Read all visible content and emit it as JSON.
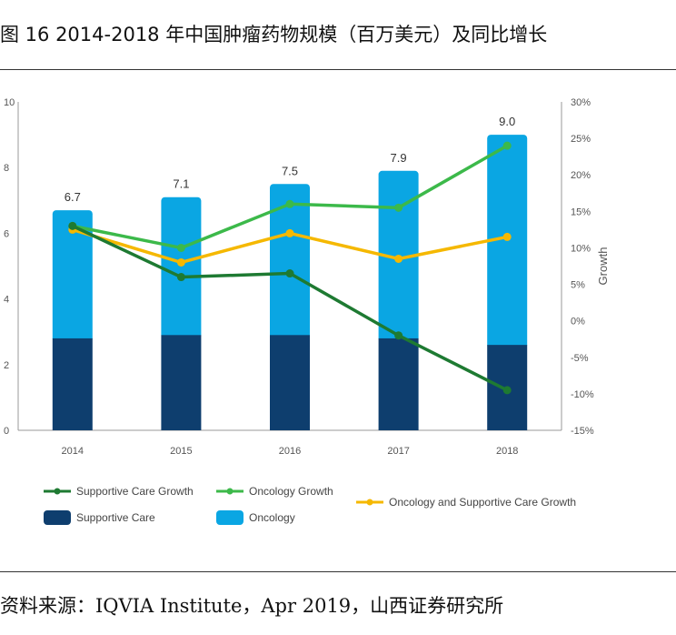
{
  "caption": "图 16 2014-2018 年中国肿瘤药物规模（百万美元）及同比增长",
  "source": "资料来源：IQVIA Institute，Apr 2019，山西证券研究所",
  "colors": {
    "supportive_care": "#0e3e6e",
    "oncology": "#0aa6e3",
    "supportive_care_growth": "#1e7a32",
    "oncology_growth": "#3cb94a",
    "combined_growth": "#f5b800",
    "axis": "#999999",
    "tick_text": "#555555"
  },
  "chart_data": {
    "type": "bar",
    "stacked": true,
    "categories": [
      "2014",
      "2015",
      "2016",
      "2017",
      "2018"
    ],
    "totals": [
      "6.7",
      "7.1",
      "7.5",
      "7.9",
      "9.0"
    ],
    "total_values": [
      6.7,
      7.1,
      7.5,
      7.9,
      9.0
    ],
    "series": [
      {
        "name": "Supportive Care",
        "values": [
          2.8,
          2.9,
          2.9,
          2.8,
          2.6
        ]
      },
      {
        "name": "Oncology",
        "values": [
          3.9,
          4.2,
          4.6,
          5.1,
          6.4
        ]
      }
    ],
    "line_series": [
      {
        "name": "Supportive Care Growth",
        "values": [
          13,
          6,
          6.5,
          -2,
          -9.5
        ]
      },
      {
        "name": "Oncology Growth",
        "values": [
          13,
          10,
          16,
          15.5,
          24
        ]
      },
      {
        "name": "Oncology and Supportive Care Growth",
        "values": [
          12.5,
          8,
          12,
          8.5,
          11.5
        ]
      }
    ],
    "y_left": {
      "min": 0,
      "max": 10,
      "ticks": [
        "0",
        "2",
        "4",
        "6",
        "8",
        "10"
      ]
    },
    "y_right": {
      "label": "Growth",
      "min": -15,
      "max": 30,
      "ticks": [
        "-15%",
        "-10%",
        "-5%",
        "0%",
        "5%",
        "10%",
        "15%",
        "20%",
        "25%",
        "30%"
      ]
    },
    "legend": [
      {
        "label": "Supportive Care Growth",
        "kind": "line",
        "color_key": "supportive_care_growth"
      },
      {
        "label": "Oncology Growth",
        "kind": "line",
        "color_key": "oncology_growth"
      },
      {
        "label": "Oncology and Supportive Care Growth",
        "kind": "line",
        "color_key": "combined_growth"
      },
      {
        "label": "Supportive Care",
        "kind": "box",
        "color_key": "supportive_care"
      },
      {
        "label": "Oncology",
        "kind": "box",
        "color_key": "oncology"
      }
    ]
  }
}
